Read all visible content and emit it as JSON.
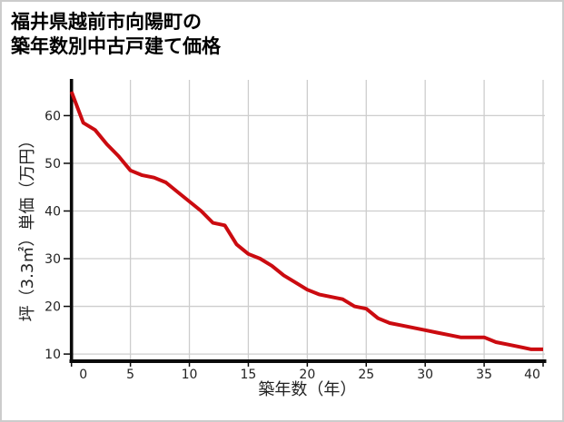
{
  "window": {
    "background": "#ffffff",
    "border_color": "#cccccc"
  },
  "title": {
    "line1": "福井県越前市向陽町の",
    "line2": "築年数別中古戸建て価格"
  },
  "chart_data": {
    "type": "line",
    "title": "福井県越前市向陽町の築年数別中古戸建て価格",
    "xlabel": "築年数（年）",
    "ylabel": "坪（3.3㎡）単価（万円）",
    "x": [
      0,
      1,
      2,
      3,
      4,
      5,
      6,
      7,
      8,
      9,
      10,
      11,
      12,
      13,
      14,
      15,
      16,
      17,
      18,
      19,
      20,
      21,
      22,
      23,
      24,
      25,
      26,
      27,
      28,
      29,
      30,
      31,
      32,
      33,
      34,
      35,
      36,
      37,
      38,
      39,
      40
    ],
    "values": [
      65,
      58.5,
      57,
      54,
      51.5,
      48.5,
      47.5,
      47,
      46,
      44,
      42,
      40,
      37.5,
      37,
      33,
      31,
      30,
      28.5,
      26.5,
      25,
      23.5,
      22.5,
      22,
      21.5,
      20,
      19.5,
      17.5,
      16.5,
      16,
      15.5,
      15,
      14.5,
      14,
      13.5,
      13.5,
      13.5,
      12.5,
      12,
      11.5,
      11,
      11
    ],
    "xlim": [
      0,
      40
    ],
    "ylim": [
      8.5,
      67.5
    ],
    "x_ticks": [
      0,
      5,
      10,
      15,
      20,
      25,
      30,
      35,
      40
    ],
    "y_ticks": [
      10,
      20,
      30,
      40,
      50,
      60
    ],
    "grid": true,
    "legend_position": "none",
    "line_color": "#cb0b10",
    "gridline_color": "#cdcdcd",
    "axis_color": "#0a0a0a",
    "tick_label_color": "#222222"
  }
}
